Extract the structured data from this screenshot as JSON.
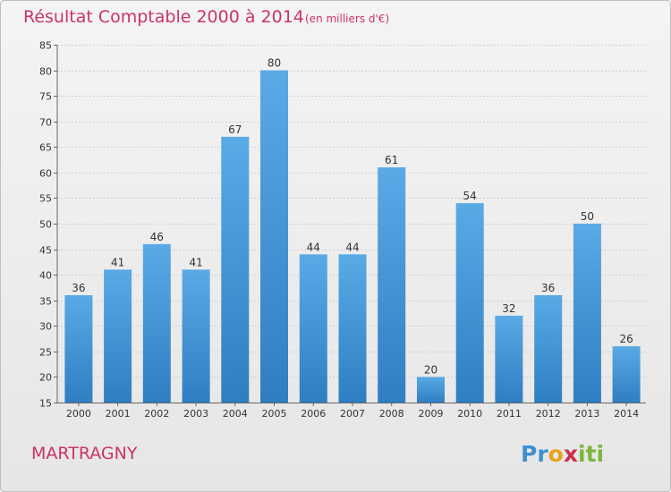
{
  "colors": {
    "title": "#cc3366",
    "bar_top": "#5aaae6",
    "bar_bottom": "#2f7ec2",
    "axis_text": "#333333",
    "grid": "#cfcfcf",
    "city": "#cc3366"
  },
  "chart_data": {
    "type": "bar",
    "title": "Résultat Comptable 2000 à 2014",
    "subtitle": "(en milliers d'€)",
    "categories": [
      "2000",
      "2001",
      "2002",
      "2003",
      "2004",
      "2005",
      "2006",
      "2007",
      "2008",
      "2009",
      "2010",
      "2011",
      "2012",
      "2013",
      "2014"
    ],
    "values": [
      36,
      41,
      46,
      41,
      67,
      80,
      44,
      44,
      61,
      20,
      54,
      32,
      36,
      50,
      26
    ],
    "ylim": [
      15,
      85
    ],
    "yticks": [
      15,
      20,
      25,
      30,
      35,
      40,
      45,
      50,
      55,
      60,
      65,
      70,
      75,
      80,
      85
    ],
    "grid": true,
    "xlabel": "",
    "ylabel": ""
  },
  "footer": {
    "city": "MARTRAGNY",
    "logo_text": "Proxiti",
    "logo_letters": [
      "P",
      "r",
      "o",
      "x",
      "i",
      "t",
      "i"
    ],
    "logo_colors": [
      "#3f8fd2",
      "#3f8fd2",
      "#e9a21c",
      "#cc2f4f",
      "#7bb63b",
      "#7bb63b",
      "#7bb63b"
    ]
  }
}
